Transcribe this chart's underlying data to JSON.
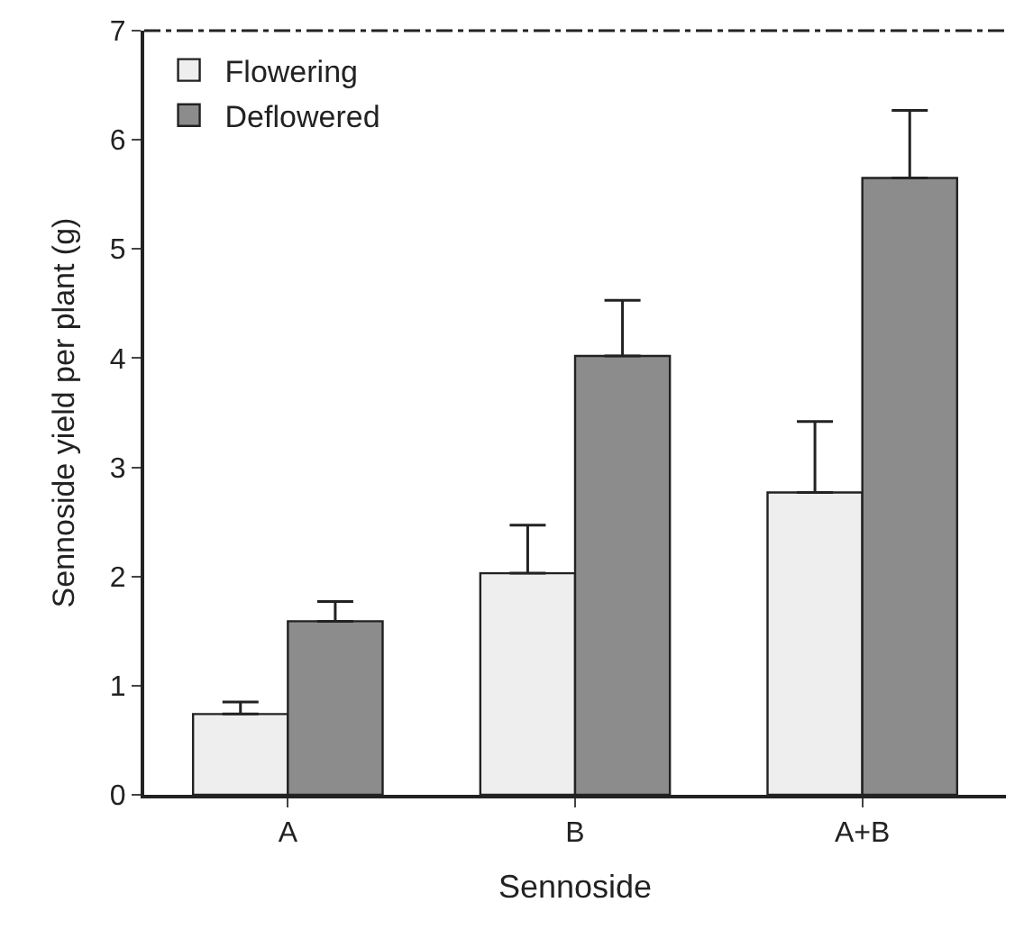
{
  "chart_data": {
    "type": "bar",
    "xlabel": "Sennoside",
    "ylabel": "Sennoside yield per plant (g)",
    "categories": [
      "A",
      "B",
      "A+B"
    ],
    "series": [
      {
        "name": "Flowering",
        "color": "#eeeeee",
        "values": [
          0.74,
          2.03,
          2.77
        ],
        "errors": [
          [
            0.74,
            0.85
          ],
          [
            2.03,
            2.47
          ],
          [
            2.77,
            3.42
          ]
        ]
      },
      {
        "name": "Deflowered",
        "color": "#8c8c8c",
        "values": [
          1.59,
          4.02,
          5.65
        ],
        "errors": [
          [
            1.59,
            1.77
          ],
          [
            4.02,
            4.53
          ],
          [
            5.65,
            6.27
          ]
        ]
      }
    ],
    "ylim": [
      0,
      7
    ],
    "yticks": [
      0,
      1,
      2,
      3,
      4,
      5,
      6,
      7
    ],
    "grid": false,
    "legend": "top left"
  }
}
